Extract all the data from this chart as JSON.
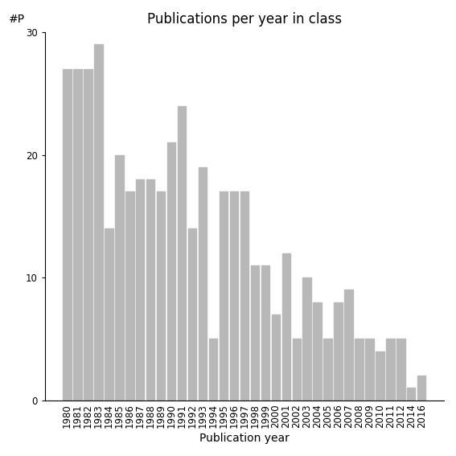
{
  "title": "Publications per year in class",
  "xlabel": "Publication year",
  "ylabel": "#P",
  "categories": [
    "1980",
    "1981",
    "1982",
    "1983",
    "1984",
    "1985",
    "1986",
    "1987",
    "1988",
    "1989",
    "1990",
    "1991",
    "1992",
    "1993",
    "1994",
    "1995",
    "1996",
    "1997",
    "1998",
    "1999",
    "2000",
    "2001",
    "2002",
    "2003",
    "2004",
    "2005",
    "2006",
    "2007",
    "2008",
    "2009",
    "2010",
    "2011",
    "2012",
    "2014",
    "2016"
  ],
  "values": [
    27,
    27,
    27,
    29,
    14,
    20,
    17,
    18,
    18,
    17,
    21,
    24,
    14,
    19,
    5,
    17,
    17,
    17,
    11,
    11,
    7,
    12,
    5,
    10,
    8,
    5,
    8,
    9,
    5,
    5,
    4,
    5,
    5,
    1,
    2
  ],
  "bar_color": "#b8b8b8",
  "bar_edgecolor": "#b8b8b8",
  "ylim": [
    0,
    30
  ],
  "yticks": [
    0,
    10,
    20,
    30
  ],
  "background_color": "#ffffff",
  "title_fontsize": 12,
  "axis_label_fontsize": 10,
  "tick_fontsize": 8.5
}
